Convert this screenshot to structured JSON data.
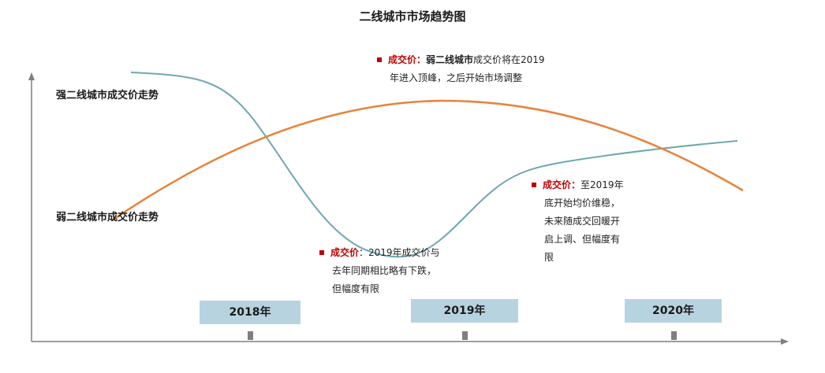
{
  "title": "二线城市市场趋势图",
  "series": {
    "strong": {
      "label": "强二线城市成交价走势",
      "color": "#6fa8b0"
    },
    "weak": {
      "label": "弱二线城市成交价走势",
      "color": "#e8823a"
    }
  },
  "notes": {
    "top": {
      "keyword": "成交价：",
      "bold": "弱二线城市",
      "line1": "成交价将在2019",
      "line2": "年进入顶峰，之后开始市场调整"
    },
    "middle": {
      "keyword": "成交价",
      "line1": "：2019年成交价与",
      "line2": "去年同期相比略有下跌，",
      "line3": "但幅度有限"
    },
    "right": {
      "keyword": "成交价：",
      "line1": "至2019年",
      "line2": "底开始均价维稳，",
      "line3": "未来随成交回暖开",
      "line4": "启上调、但幅度有",
      "line5": "限"
    }
  },
  "years": [
    "2018年",
    "2019年",
    "2020年"
  ],
  "colors": {
    "accent": "#c00000",
    "year_box": "#b7d3e0",
    "axis": "#7f7f7f"
  }
}
